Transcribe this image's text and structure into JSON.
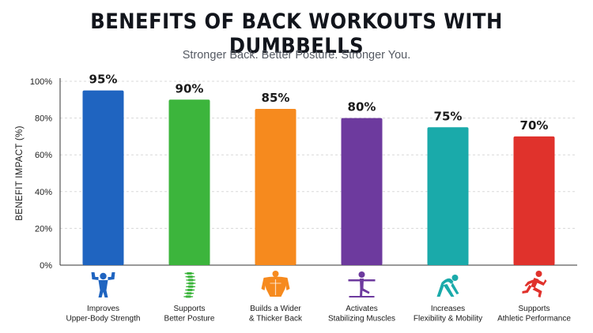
{
  "chart_data": {
    "type": "bar",
    "title": "BENEFITS OF BACK WORKOUTS WITH DUMBBELLS",
    "subtitle": "Stronger Back. Better Posture. Stronger You.",
    "ylabel": "BENEFIT IMPACT (%)",
    "xlabel": "",
    "ylim": [
      0,
      100
    ],
    "yticks": [
      "0%",
      "20%",
      "40%",
      "60%",
      "80%",
      "100%"
    ],
    "ytick_values": [
      0,
      20,
      40,
      60,
      80,
      100
    ],
    "grid": true,
    "legend": "none",
    "categories": [
      [
        "Improves",
        "Upper-Body Strength"
      ],
      [
        "Supports",
        "Better Posture"
      ],
      [
        "Builds a Wider",
        "& Thicker Back"
      ],
      [
        "Activates",
        "Stabilizing Muscles"
      ],
      [
        "Increases",
        "Flexibility & Mobility"
      ],
      [
        "Supports",
        "Athletic Performance"
      ]
    ],
    "values": [
      95,
      90,
      85,
      80,
      75,
      70
    ],
    "value_labels": [
      "95%",
      "90%",
      "85%",
      "80%",
      "75%",
      "70%"
    ],
    "colors": [
      "#1f64c0",
      "#3cb53c",
      "#f68a1e",
      "#6d3a9e",
      "#1aaaaa",
      "#e0322c"
    ],
    "icons": [
      "flexing-bodybuilder-icon",
      "spine-icon",
      "muscular-torso-icon",
      "balance-pose-icon",
      "stretching-person-icon",
      "sprinting-runner-icon"
    ]
  }
}
